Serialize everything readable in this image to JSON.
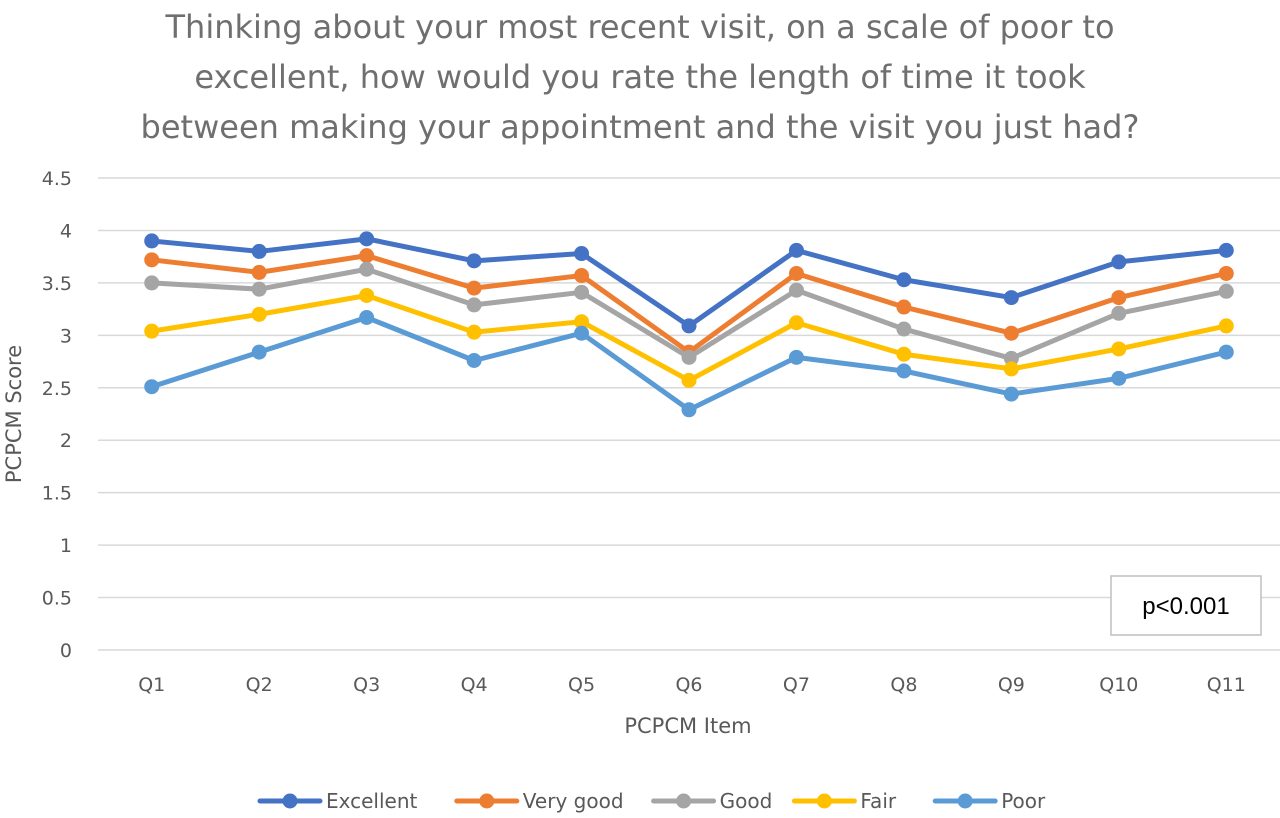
{
  "chart_data": {
    "type": "line",
    "title_lines": [
      "Thinking about your most recent visit, on a scale of poor to",
      "excellent, how would you rate the length of time it took",
      "between making your appointment and the visit you just had?"
    ],
    "xlabel": "PCPCM Item",
    "ylabel": "PCPCM Score",
    "ylim": [
      0,
      4.5
    ],
    "yticks": [
      "0",
      "0.5",
      "1",
      "1.5",
      "2",
      "2.5",
      "3",
      "3.5",
      "4",
      "4.5"
    ],
    "grid": true,
    "legend_position": "bottom",
    "annotation": "p<0.001",
    "categories": [
      "Q1",
      "Q2",
      "Q3",
      "Q4",
      "Q5",
      "Q6",
      "Q7",
      "Q8",
      "Q9",
      "Q10",
      "Q11"
    ],
    "series": [
      {
        "name": "Excellent",
        "color": "#4472c4",
        "values": [
          3.9,
          3.8,
          3.92,
          3.71,
          3.78,
          3.09,
          3.81,
          3.53,
          3.36,
          3.7,
          3.81
        ]
      },
      {
        "name": "Very good",
        "color": "#ed7d31",
        "values": [
          3.72,
          3.6,
          3.76,
          3.45,
          3.57,
          2.84,
          3.59,
          3.27,
          3.02,
          3.36,
          3.59
        ]
      },
      {
        "name": "Good",
        "color": "#a5a5a5",
        "values": [
          3.5,
          3.44,
          3.63,
          3.29,
          3.41,
          2.79,
          3.43,
          3.06,
          2.78,
          3.21,
          3.42
        ]
      },
      {
        "name": "Fair",
        "color": "#ffc000",
        "values": [
          3.04,
          3.2,
          3.38,
          3.03,
          3.13,
          2.57,
          3.12,
          2.82,
          2.68,
          2.87,
          3.09
        ]
      },
      {
        "name": "Poor",
        "color": "#5b9bd5",
        "values": [
          2.51,
          2.84,
          3.17,
          2.76,
          3.02,
          2.29,
          2.79,
          2.66,
          2.44,
          2.59,
          2.84
        ]
      }
    ]
  }
}
